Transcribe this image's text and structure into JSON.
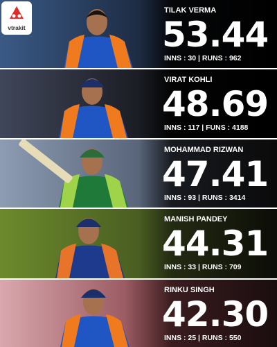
{
  "brand": "vtrakit",
  "players": [
    {
      "name": "TILAK VERMA",
      "average": "53.44",
      "stats": "INNS : 30 | RUNS : 962"
    },
    {
      "name": "VIRAT KOHLI",
      "average": "48.69",
      "stats": "INNS : 117 | FUNS : 4188"
    },
    {
      "name": "MOHAMMAD RIZWAN",
      "average": "47.41",
      "stats": "INNS : 93 | RUNS : 3414"
    },
    {
      "name": "MANISH PANDEY",
      "average": "44.31",
      "stats": "INNS : 33 | RUNS : 709"
    },
    {
      "name": "RINKU SINGH",
      "average": "42.30",
      "stats": "INNS : 25 | RUNS : 550"
    }
  ]
}
